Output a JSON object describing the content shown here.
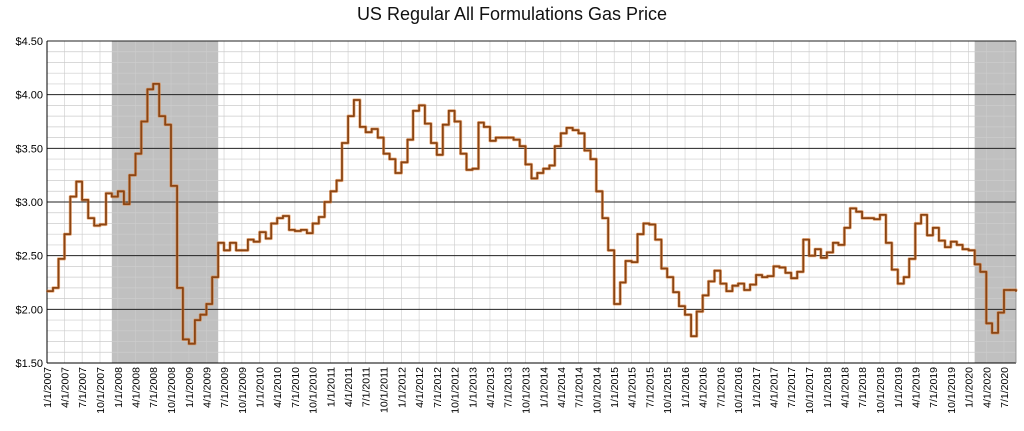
{
  "chart_data": {
    "type": "line",
    "title": "US Regular All Formulations Gas Price",
    "xlabel": "",
    "ylabel": "",
    "ylim": [
      1.5,
      4.5
    ],
    "y_ticks": [
      "$1.50",
      "$2.00",
      "$2.50",
      "$3.00",
      "$3.50",
      "$4.00",
      "$4.50"
    ],
    "x_ticks": [
      "1/1/2007",
      "4/1/2007",
      "7/1/2007",
      "10/1/2007",
      "1/1/2008",
      "4/1/2008",
      "7/1/2008",
      "10/1/2008",
      "1/1/2009",
      "4/1/2009",
      "7/1/2009",
      "10/1/2009",
      "1/1/2010",
      "4/1/2010",
      "7/1/2010",
      "10/1/2010",
      "1/1/2011",
      "4/1/2011",
      "7/1/2011",
      "10/1/2011",
      "1/1/2012",
      "4/1/2012",
      "7/1/2012",
      "10/1/2012",
      "1/1/2013",
      "4/1/2013",
      "7/1/2013",
      "10/1/2013",
      "1/1/2014",
      "4/1/2014",
      "7/1/2014",
      "10/1/2014",
      "1/1/2015",
      "4/1/2015",
      "7/1/2015",
      "10/1/2015",
      "1/1/2016",
      "4/1/2016",
      "7/1/2016",
      "10/1/2016",
      "1/1/2017",
      "4/1/2017",
      "7/1/2017",
      "10/1/2017",
      "1/1/2018",
      "4/1/2018",
      "7/1/2018",
      "10/1/2018",
      "1/1/2019",
      "4/1/2019",
      "7/1/2019",
      "10/1/2019",
      "1/1/2020",
      "4/1/2020",
      "7/1/2020"
    ],
    "grid": true,
    "legend": "none",
    "recession_shading": [
      {
        "start": "12/1/2007",
        "end": "6/1/2009"
      },
      {
        "start": "2/1/2020",
        "end": "9/1/2020"
      }
    ],
    "colors": {
      "line": "#8B4513",
      "line_highlight": "#E07A2E",
      "shade": "#c0c0c0",
      "grid_major": "#222222",
      "grid_minor": "#cccccc"
    },
    "series": [
      {
        "values": [
          [
            "1/1/2007",
            2.17
          ],
          [
            "2/1/2007",
            2.2
          ],
          [
            "3/1/2007",
            2.47
          ],
          [
            "4/1/2007",
            2.7
          ],
          [
            "5/1/2007",
            3.05
          ],
          [
            "6/1/2007",
            3.19
          ],
          [
            "7/1/2007",
            3.02
          ],
          [
            "8/1/2007",
            2.85
          ],
          [
            "9/1/2007",
            2.78
          ],
          [
            "10/1/2007",
            2.79
          ],
          [
            "11/1/2007",
            3.08
          ],
          [
            "12/1/2007",
            3.05
          ],
          [
            "1/1/2008",
            3.1
          ],
          [
            "2/1/2008",
            2.98
          ],
          [
            "3/1/2008",
            3.25
          ],
          [
            "4/1/2008",
            3.45
          ],
          [
            "5/1/2008",
            3.75
          ],
          [
            "6/1/2008",
            4.05
          ],
          [
            "7/1/2008",
            4.1
          ],
          [
            "8/1/2008",
            3.8
          ],
          [
            "9/1/2008",
            3.72
          ],
          [
            "10/1/2008",
            3.15
          ],
          [
            "11/1/2008",
            2.2
          ],
          [
            "12/1/2008",
            1.72
          ],
          [
            "1/1/2009",
            1.68
          ],
          [
            "2/1/2009",
            1.9
          ],
          [
            "3/1/2009",
            1.95
          ],
          [
            "4/1/2009",
            2.05
          ],
          [
            "5/1/2009",
            2.3
          ],
          [
            "6/1/2009",
            2.62
          ],
          [
            "7/1/2009",
            2.55
          ],
          [
            "8/1/2009",
            2.62
          ],
          [
            "9/1/2009",
            2.55
          ],
          [
            "10/1/2009",
            2.55
          ],
          [
            "11/1/2009",
            2.65
          ],
          [
            "12/1/2009",
            2.63
          ],
          [
            "1/1/2010",
            2.72
          ],
          [
            "2/1/2010",
            2.66
          ],
          [
            "3/1/2010",
            2.8
          ],
          [
            "4/1/2010",
            2.85
          ],
          [
            "5/1/2010",
            2.87
          ],
          [
            "6/1/2010",
            2.74
          ],
          [
            "7/1/2010",
            2.73
          ],
          [
            "8/1/2010",
            2.74
          ],
          [
            "9/1/2010",
            2.71
          ],
          [
            "10/1/2010",
            2.8
          ],
          [
            "11/1/2010",
            2.86
          ],
          [
            "12/1/2010",
            3.0
          ],
          [
            "1/1/2011",
            3.1
          ],
          [
            "2/1/2011",
            3.2
          ],
          [
            "3/1/2011",
            3.55
          ],
          [
            "4/1/2011",
            3.8
          ],
          [
            "5/1/2011",
            3.95
          ],
          [
            "6/1/2011",
            3.7
          ],
          [
            "7/1/2011",
            3.65
          ],
          [
            "8/1/2011",
            3.68
          ],
          [
            "9/1/2011",
            3.6
          ],
          [
            "10/1/2011",
            3.45
          ],
          [
            "11/1/2011",
            3.4
          ],
          [
            "12/1/2011",
            3.27
          ],
          [
            "1/1/2012",
            3.37
          ],
          [
            "2/1/2012",
            3.58
          ],
          [
            "3/1/2012",
            3.85
          ],
          [
            "4/1/2012",
            3.9
          ],
          [
            "5/1/2012",
            3.73
          ],
          [
            "6/1/2012",
            3.55
          ],
          [
            "7/1/2012",
            3.44
          ],
          [
            "8/1/2012",
            3.72
          ],
          [
            "9/1/2012",
            3.85
          ],
          [
            "10/1/2012",
            3.75
          ],
          [
            "11/1/2012",
            3.45
          ],
          [
            "12/1/2012",
            3.3
          ],
          [
            "1/1/2013",
            3.31
          ],
          [
            "2/1/2013",
            3.74
          ],
          [
            "3/1/2013",
            3.7
          ],
          [
            "4/1/2013",
            3.57
          ],
          [
            "5/1/2013",
            3.6
          ],
          [
            "6/1/2013",
            3.6
          ],
          [
            "7/1/2013",
            3.6
          ],
          [
            "8/1/2013",
            3.58
          ],
          [
            "9/1/2013",
            3.52
          ],
          [
            "10/1/2013",
            3.35
          ],
          [
            "11/1/2013",
            3.22
          ],
          [
            "12/1/2013",
            3.27
          ],
          [
            "1/1/2014",
            3.31
          ],
          [
            "2/1/2014",
            3.34
          ],
          [
            "3/1/2014",
            3.52
          ],
          [
            "4/1/2014",
            3.64
          ],
          [
            "5/1/2014",
            3.69
          ],
          [
            "6/1/2014",
            3.67
          ],
          [
            "7/1/2014",
            3.64
          ],
          [
            "8/1/2014",
            3.48
          ],
          [
            "9/1/2014",
            3.4
          ],
          [
            "10/1/2014",
            3.1
          ],
          [
            "11/1/2014",
            2.85
          ],
          [
            "12/1/2014",
            2.55
          ],
          [
            "1/1/2015",
            2.05
          ],
          [
            "2/1/2015",
            2.25
          ],
          [
            "3/1/2015",
            2.45
          ],
          [
            "4/1/2015",
            2.44
          ],
          [
            "5/1/2015",
            2.7
          ],
          [
            "6/1/2015",
            2.8
          ],
          [
            "7/1/2015",
            2.79
          ],
          [
            "8/1/2015",
            2.65
          ],
          [
            "9/1/2015",
            2.38
          ],
          [
            "10/1/2015",
            2.3
          ],
          [
            "11/1/2015",
            2.16
          ],
          [
            "12/1/2015",
            2.03
          ],
          [
            "1/1/2016",
            1.95
          ],
          [
            "2/1/2016",
            1.75
          ],
          [
            "3/1/2016",
            1.98
          ],
          [
            "4/1/2016",
            2.13
          ],
          [
            "5/1/2016",
            2.26
          ],
          [
            "6/1/2016",
            2.36
          ],
          [
            "7/1/2016",
            2.24
          ],
          [
            "8/1/2016",
            2.17
          ],
          [
            "9/1/2016",
            2.22
          ],
          [
            "10/1/2016",
            2.24
          ],
          [
            "11/1/2016",
            2.18
          ],
          [
            "12/1/2016",
            2.23
          ],
          [
            "1/1/2017",
            2.32
          ],
          [
            "2/1/2017",
            2.3
          ],
          [
            "3/1/2017",
            2.31
          ],
          [
            "4/1/2017",
            2.4
          ],
          [
            "5/1/2017",
            2.39
          ],
          [
            "6/1/2017",
            2.34
          ],
          [
            "7/1/2017",
            2.29
          ],
          [
            "8/1/2017",
            2.35
          ],
          [
            "9/1/2017",
            2.65
          ],
          [
            "10/1/2017",
            2.5
          ],
          [
            "11/1/2017",
            2.56
          ],
          [
            "12/1/2017",
            2.48
          ],
          [
            "1/1/2018",
            2.53
          ],
          [
            "2/1/2018",
            2.62
          ],
          [
            "3/1/2018",
            2.6
          ],
          [
            "4/1/2018",
            2.76
          ],
          [
            "5/1/2018",
            2.94
          ],
          [
            "6/1/2018",
            2.91
          ],
          [
            "7/1/2018",
            2.85
          ],
          [
            "8/1/2018",
            2.85
          ],
          [
            "9/1/2018",
            2.84
          ],
          [
            "10/1/2018",
            2.88
          ],
          [
            "11/1/2018",
            2.62
          ],
          [
            "12/1/2018",
            2.37
          ],
          [
            "1/1/2019",
            2.24
          ],
          [
            "2/1/2019",
            2.3
          ],
          [
            "3/1/2019",
            2.47
          ],
          [
            "4/1/2019",
            2.8
          ],
          [
            "5/1/2019",
            2.88
          ],
          [
            "6/1/2019",
            2.69
          ],
          [
            "7/1/2019",
            2.76
          ],
          [
            "8/1/2019",
            2.64
          ],
          [
            "9/1/2019",
            2.58
          ],
          [
            "10/1/2019",
            2.63
          ],
          [
            "11/1/2019",
            2.6
          ],
          [
            "12/1/2019",
            2.56
          ],
          [
            "1/1/2020",
            2.55
          ],
          [
            "2/1/2020",
            2.42
          ],
          [
            "3/1/2020",
            2.35
          ],
          [
            "4/1/2020",
            1.87
          ],
          [
            "5/1/2020",
            1.78
          ],
          [
            "6/1/2020",
            1.97
          ],
          [
            "7/1/2020",
            2.18
          ],
          [
            "8/1/2020",
            2.18
          ],
          [
            "9/1/2020",
            2.17
          ]
        ]
      }
    ]
  }
}
